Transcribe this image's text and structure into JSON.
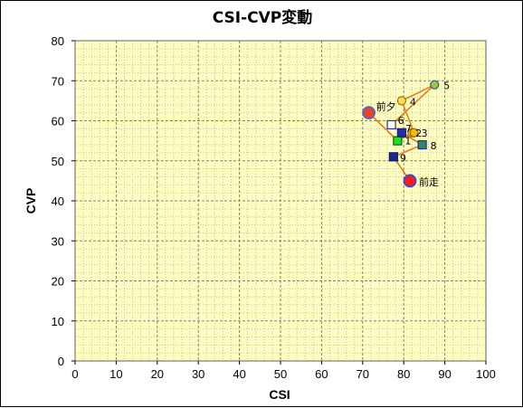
{
  "chart_data": {
    "type": "scatter",
    "title": "CSI-CVP変動",
    "xlabel": "CSI",
    "ylabel": "CVP",
    "xlim": [
      0,
      100
    ],
    "ylim": [
      0,
      80
    ],
    "x_ticks": [
      "0",
      "10",
      "20",
      "30",
      "40",
      "50",
      "60",
      "70",
      "80",
      "90",
      "100"
    ],
    "y_ticks": [
      "0",
      "10",
      "20",
      "30",
      "40",
      "50",
      "60",
      "70",
      "80"
    ],
    "grid": true,
    "grid_minor": true,
    "legend": "none",
    "colors": {
      "plot_background": "#ffffc0",
      "connector_line": "#e87a1e",
      "grid_major": "#808080",
      "grid_minor": "#bdbdbd"
    },
    "points": [
      {
        "label": "前夕",
        "x": 71.5,
        "y": 62,
        "marker": "circle-large",
        "fill": "#e8461e",
        "stroke": "#4b67c8"
      },
      {
        "label": "1",
        "x": 78.5,
        "y": 55,
        "marker": "square",
        "fill": "#22dd22",
        "stroke": "#0b5c0b"
      },
      {
        "label": "2",
        "x": 82,
        "y": 57,
        "marker": "circle",
        "fill": "#ffd21e",
        "stroke": "#b07000"
      },
      {
        "label": "3",
        "x": 82.5,
        "y": 57,
        "marker": "circle",
        "fill": "#f0c000",
        "stroke": "#a06000"
      },
      {
        "label": "4",
        "x": 79.5,
        "y": 65,
        "marker": "circle",
        "fill": "#ffe050",
        "stroke": "#b07000"
      },
      {
        "label": "5",
        "x": 87.5,
        "y": 69,
        "marker": "circle",
        "fill": "#9acd32",
        "stroke": "#2e4fb0"
      },
      {
        "label": "6",
        "x": 77,
        "y": 59,
        "marker": "square",
        "fill": "#ffffff",
        "stroke": "#2030a0"
      },
      {
        "label": "7",
        "x": 79.5,
        "y": 57,
        "marker": "square",
        "fill": "#1f2fa8",
        "stroke": "#10207a"
      },
      {
        "label": "8",
        "x": 84.5,
        "y": 54,
        "marker": "square",
        "fill": "#2e8b57",
        "stroke": "#1f2fa8"
      },
      {
        "label": "9",
        "x": 77.5,
        "y": 51,
        "marker": "square",
        "fill": "#1a2a90",
        "stroke": "#0f1a60"
      },
      {
        "label": "前走",
        "x": 81.5,
        "y": 45,
        "marker": "circle-large",
        "fill": "#ff1a1a",
        "stroke": "#2850d8"
      }
    ]
  }
}
